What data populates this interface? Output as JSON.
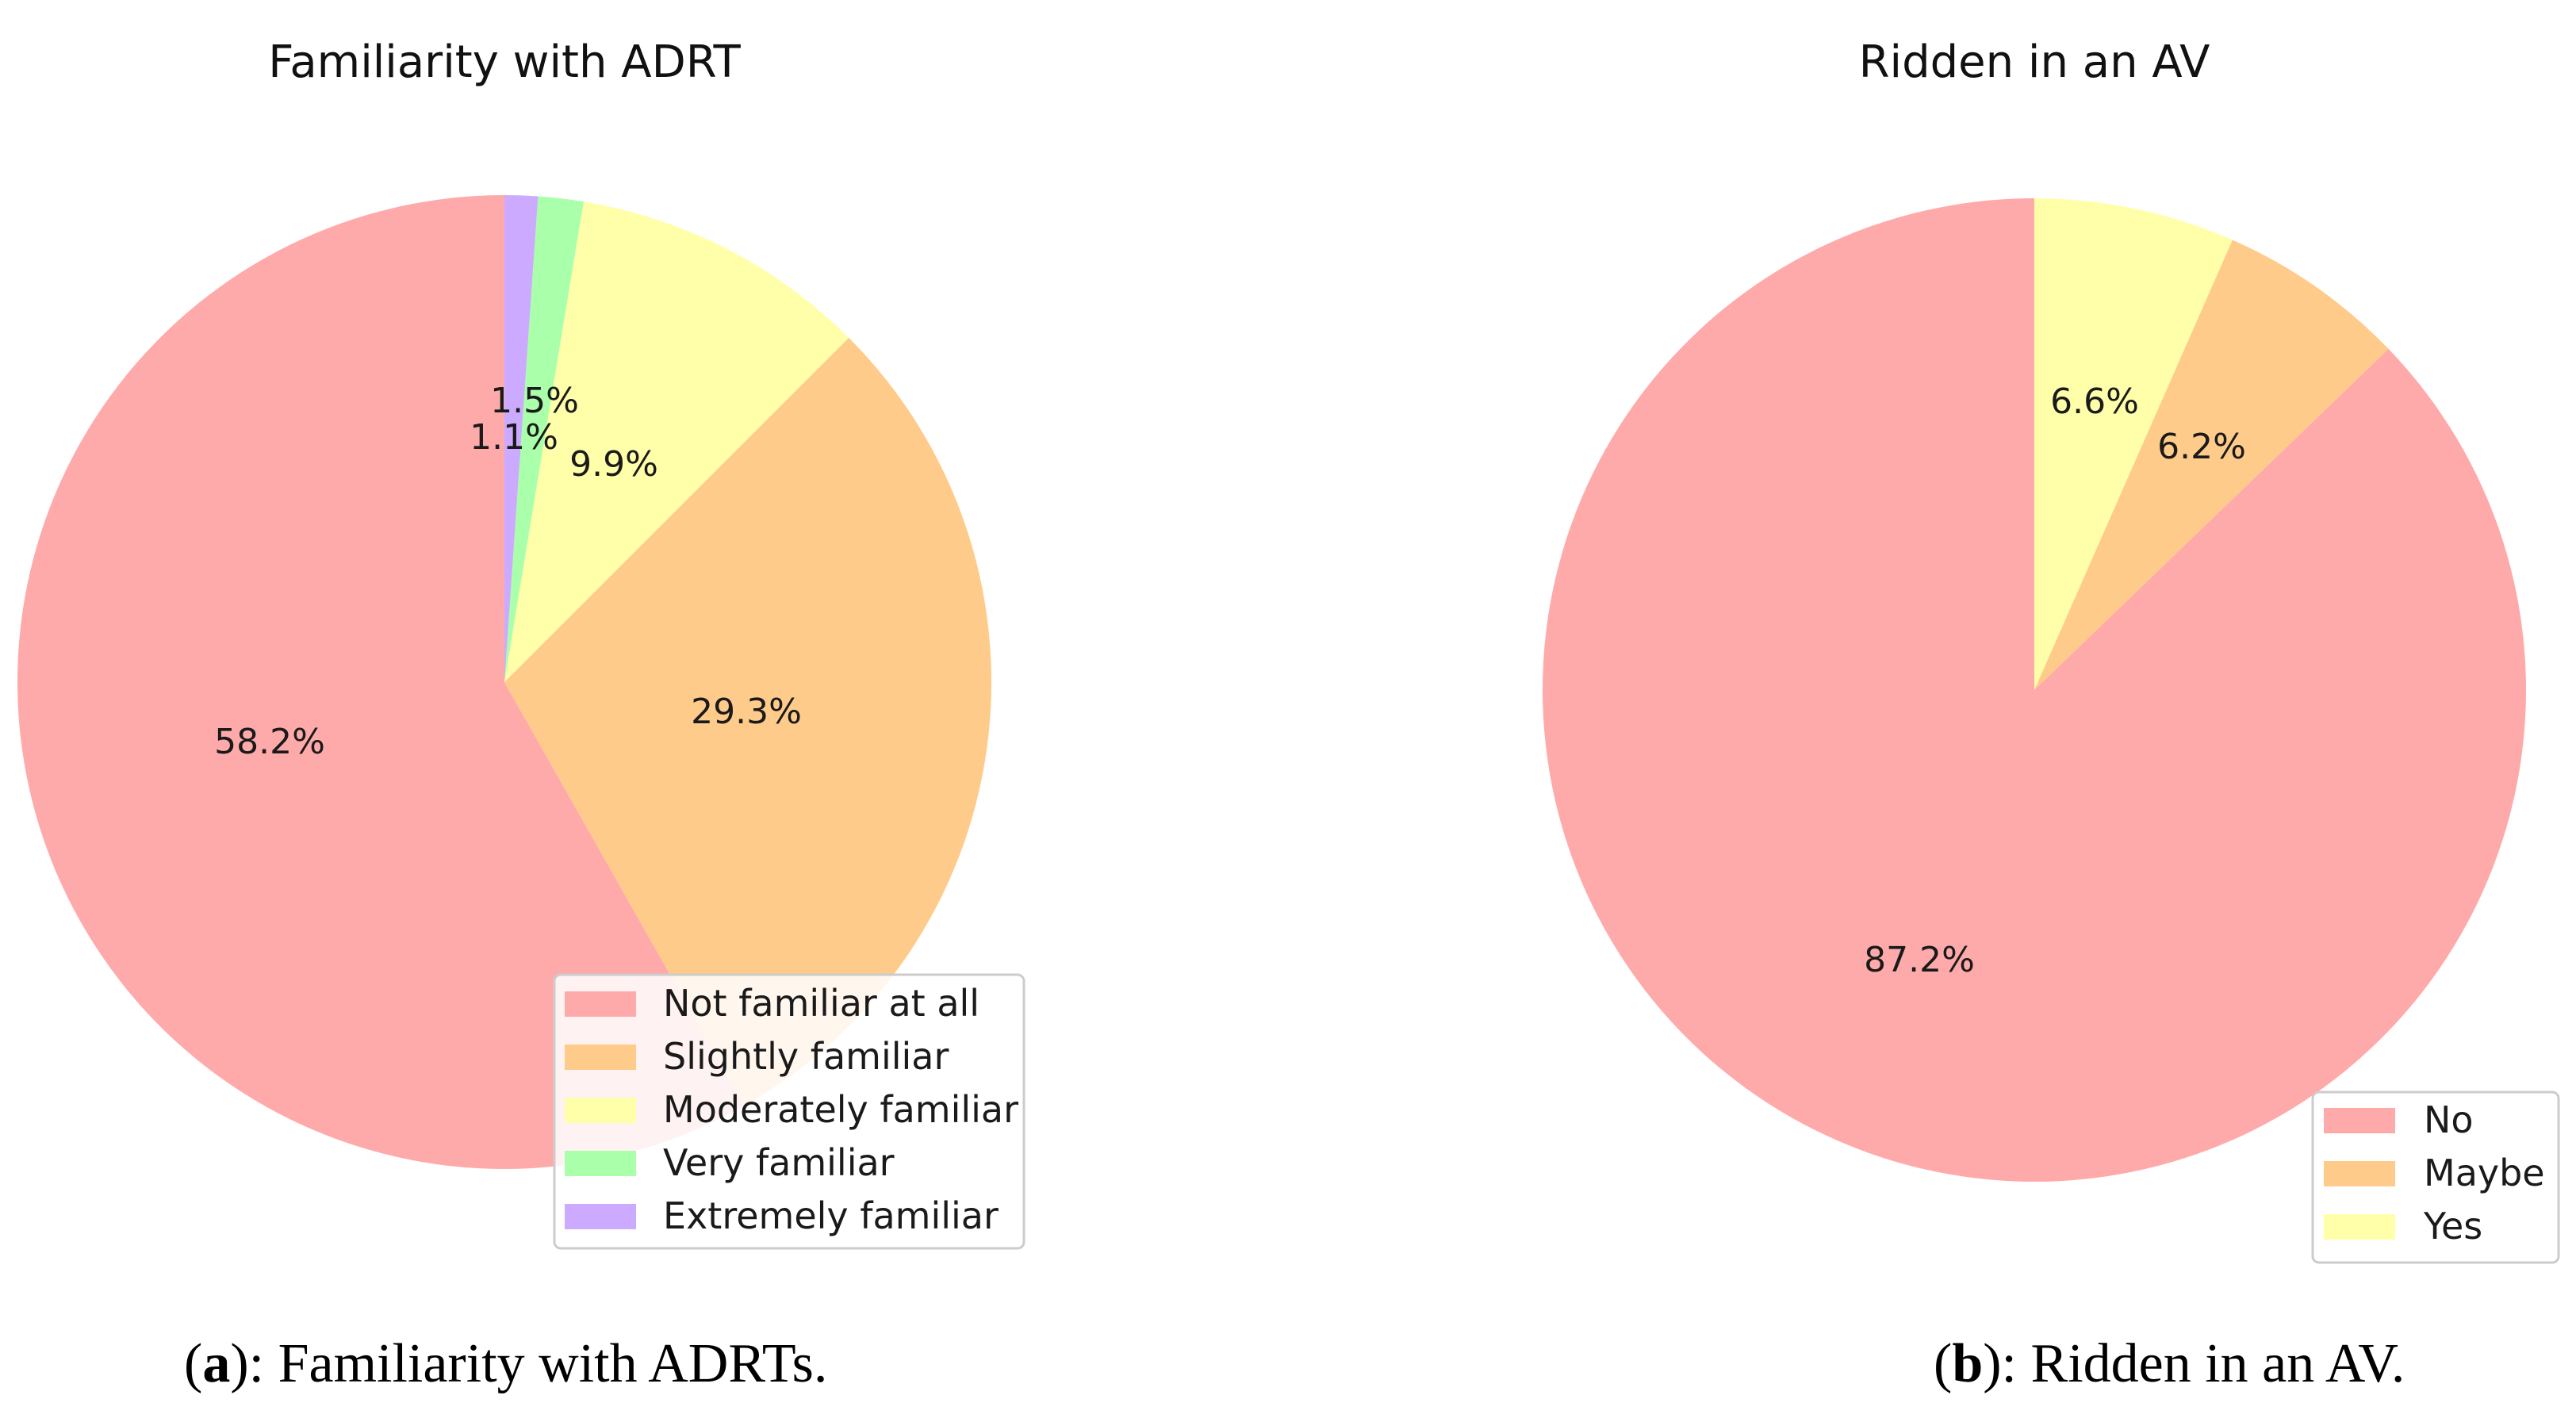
{
  "colors": {
    "salmon": "#ffaaaa",
    "orange": "#ffcb8a",
    "yellow": "#ffffaa",
    "green": "#aaffaa",
    "purple": "#ccaaff"
  },
  "chart_data": [
    {
      "type": "pie",
      "title": "Familiarity with ADRT",
      "start_angle": "90° (top)",
      "direction": "clockwise",
      "legend_placement": "bottom-right",
      "slices": [
        {
          "label": "Not familiar at all",
          "value": 58.2,
          "display": "58.2%",
          "color": "#ffaaaa"
        },
        {
          "label": "Slightly familiar",
          "value": 29.3,
          "display": "29.3%",
          "color": "#ffcb8a"
        },
        {
          "label": "Moderately familiar",
          "value": 9.9,
          "display": "9.9%",
          "color": "#ffffaa"
        },
        {
          "label": "Very familiar",
          "value": 1.5,
          "display": "1.5%",
          "color": "#aaffaa"
        },
        {
          "label": "Extremely familiar",
          "value": 1.1,
          "display": "1.1%",
          "color": "#ccaaff"
        }
      ],
      "caption": {
        "bold": "a",
        "text": "): Familiarity with ADRTs."
      }
    },
    {
      "type": "pie",
      "title": "Ridden in an AV",
      "start_angle": "90° (top)",
      "direction": "clockwise",
      "legend_placement": "bottom-right",
      "slices": [
        {
          "label": "No",
          "value": 87.2,
          "display": "87.2%",
          "color": "#ffaaaa"
        },
        {
          "label": "Maybe",
          "value": 6.2,
          "display": "6.2%",
          "color": "#ffcb8a"
        },
        {
          "label": "Yes",
          "value": 6.6,
          "display": "6.6%",
          "color": "#ffffaa"
        }
      ],
      "caption": {
        "bold": "b",
        "text": "): Ridden in an AV."
      }
    }
  ]
}
